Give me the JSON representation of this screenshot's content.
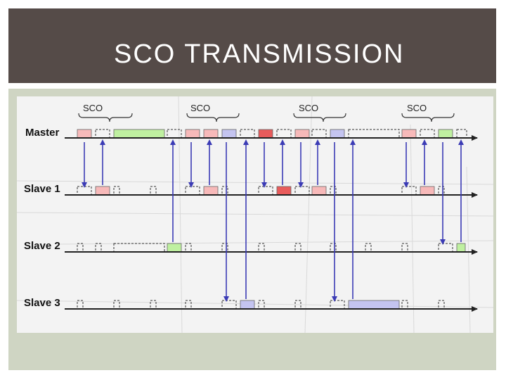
{
  "title": "SCO TRANSMISSION",
  "colors": {
    "title_bg": "#554b48",
    "panel_bg": "#cfd5c3",
    "sco_slot": "#f7b9b9",
    "sco_slot_active": "#e85b5b",
    "acl_slave2": "#bff0a0",
    "acl_slave3": "#c4c4f0",
    "arrow": "#3b3bb5",
    "timeline": "#222222"
  },
  "diagram": {
    "sco_labels": [
      "SCO",
      "SCO",
      "SCO",
      "SCO"
    ],
    "lines": [
      {
        "id": "master",
        "label": "Master"
      },
      {
        "id": "slave1",
        "label": "Slave 1"
      },
      {
        "id": "slave2",
        "label": "Slave 2"
      },
      {
        "id": "slave3",
        "label": "Slave 3"
      }
    ]
  }
}
